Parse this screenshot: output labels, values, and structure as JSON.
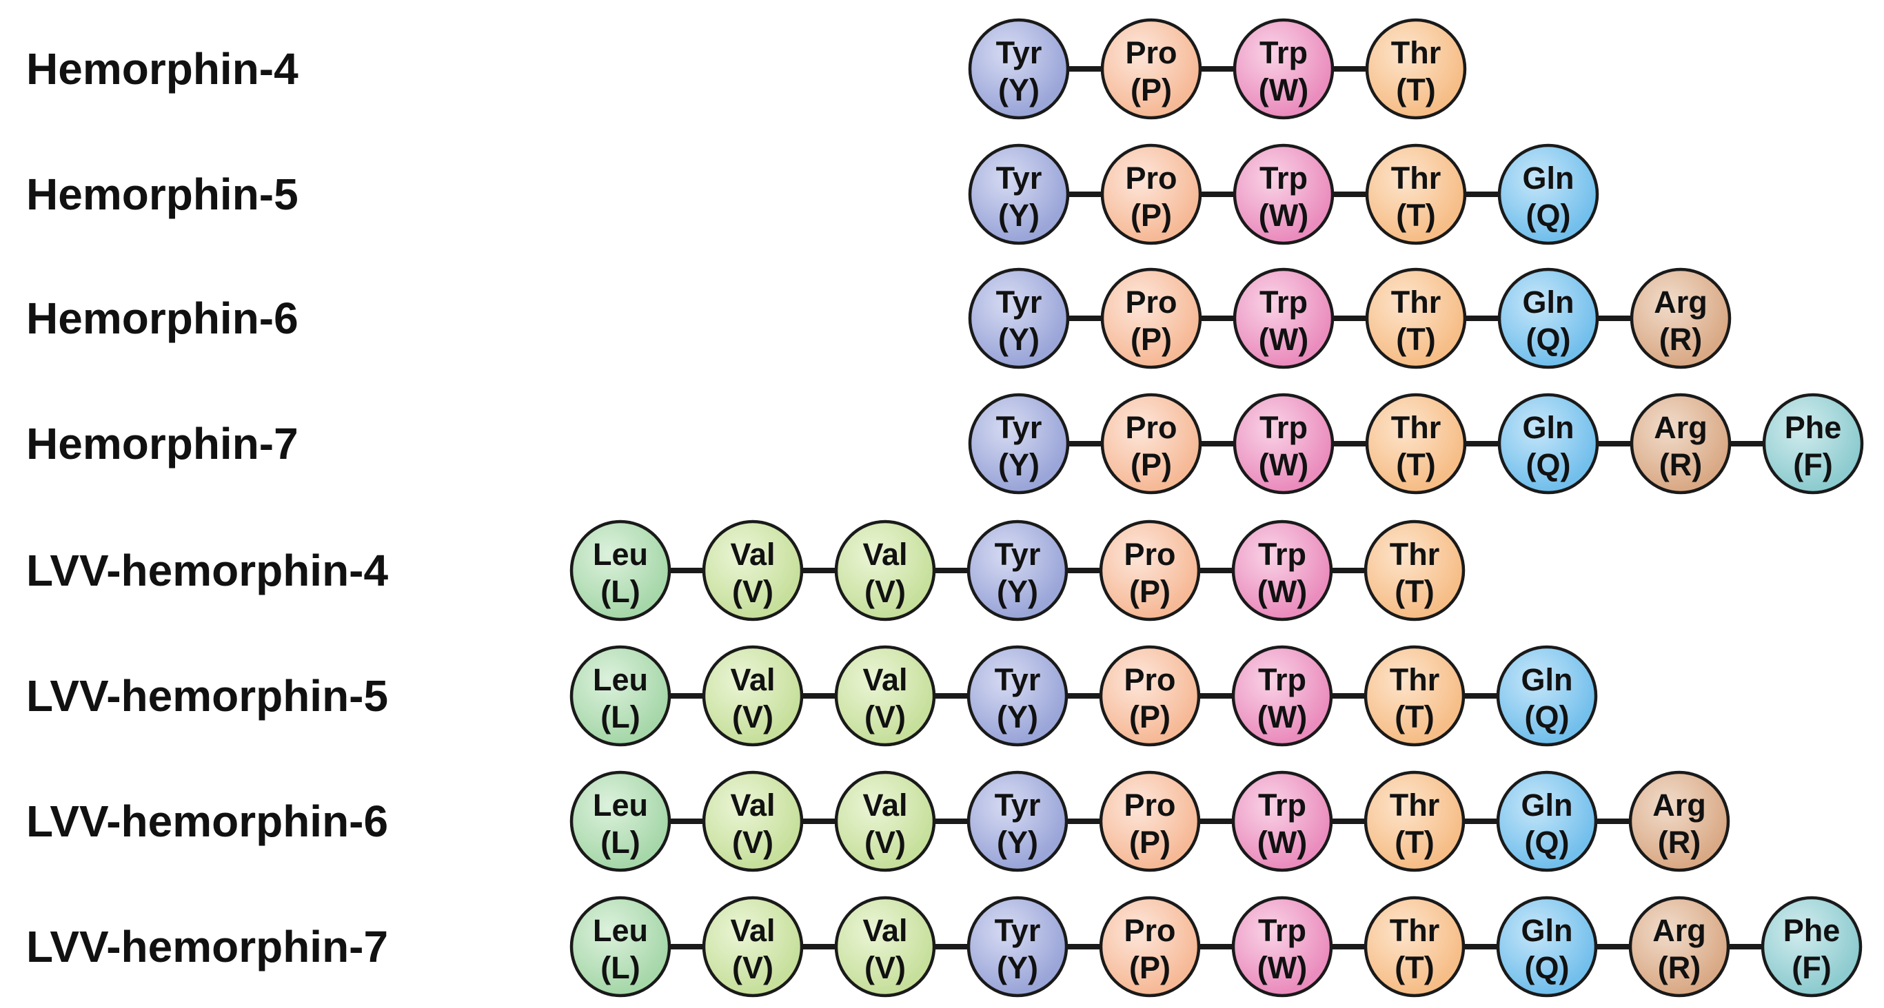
{
  "amino_acids": {
    "Leu": {
      "name": "Leu",
      "code": "(L)",
      "color": "#a6d7a9",
      "highlight": "#dcf1dc"
    },
    "Val": {
      "name": "Val",
      "code": "(V)",
      "color": "#c6df9b",
      "highlight": "#ebf5d6"
    },
    "Tyr": {
      "name": "Tyr",
      "code": "(Y)",
      "color": "#9aa5d8",
      "highlight": "#d6dbf2"
    },
    "Pro": {
      "name": "Pro",
      "code": "(P)",
      "color": "#f6b996",
      "highlight": "#fde6da"
    },
    "Trp": {
      "name": "Trp",
      "code": "(W)",
      "color": "#ea8cbd",
      "highlight": "#f9d3e6"
    },
    "Thr": {
      "name": "Thr",
      "code": "(T)",
      "color": "#f6bd86",
      "highlight": "#fde4cb"
    },
    "Gln": {
      "name": "Gln",
      "code": "(Q)",
      "color": "#72bfec",
      "highlight": "#c6e6f9"
    },
    "Arg": {
      "name": "Arg",
      "code": "(R)",
      "color": "#d9a985",
      "highlight": "#f1dccb"
    },
    "Phe": {
      "name": "Phe",
      "code": "(F)",
      "color": "#8ccbcf",
      "highlight": "#d2ecee"
    }
  },
  "peptides": [
    {
      "name": "Hemorphin-4",
      "sequence": [
        "Tyr",
        "Pro",
        "Trp",
        "Thr"
      ]
    },
    {
      "name": "Hemorphin-5",
      "sequence": [
        "Tyr",
        "Pro",
        "Trp",
        "Thr",
        "Gln"
      ]
    },
    {
      "name": "Hemorphin-6",
      "sequence": [
        "Tyr",
        "Pro",
        "Trp",
        "Thr",
        "Gln",
        "Arg"
      ]
    },
    {
      "name": "Hemorphin-7",
      "sequence": [
        "Tyr",
        "Pro",
        "Trp",
        "Thr",
        "Gln",
        "Arg",
        "Phe"
      ]
    },
    {
      "name": "LVV-hemorphin-4",
      "sequence": [
        "Leu",
        "Val",
        "Val",
        "Tyr",
        "Pro",
        "Trp",
        "Thr"
      ]
    },
    {
      "name": "LVV-hemorphin-5",
      "sequence": [
        "Leu",
        "Val",
        "Val",
        "Tyr",
        "Pro",
        "Trp",
        "Thr",
        "Gln"
      ]
    },
    {
      "name": "LVV-hemorphin-6",
      "sequence": [
        "Leu",
        "Val",
        "Val",
        "Tyr",
        "Pro",
        "Trp",
        "Thr",
        "Gln",
        "Arg"
      ]
    },
    {
      "name": "LVV-hemorphin-7",
      "sequence": [
        "Leu",
        "Val",
        "Val",
        "Tyr",
        "Pro",
        "Trp",
        "Thr",
        "Gln",
        "Arg",
        "Phe"
      ]
    }
  ]
}
